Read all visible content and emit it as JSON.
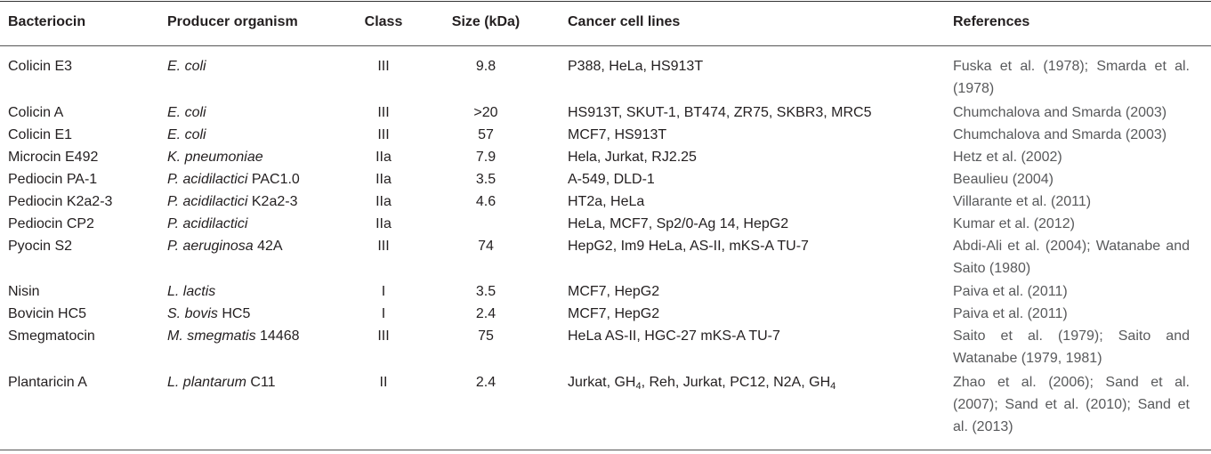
{
  "headers": [
    "Bacteriocin",
    "Producer organism",
    "Class",
    "Size (kDa)",
    "Cancer cell lines",
    "References"
  ],
  "rows": [
    {
      "bacteriocin": "Colicin E3",
      "producer_i": "E. coli",
      "producer_rest": "",
      "class": "III",
      "size": "9.8",
      "cell_lines": "P388, HeLa, HS913T",
      "references": "Fuska et al. (1978); Smarda et al. (1978)"
    },
    {
      "bacteriocin": "Colicin A",
      "producer_i": "E. coli",
      "producer_rest": "",
      "class": "III",
      "size": ">20",
      "cell_lines": "HS913T, SKUT-1, BT474, ZR75, SKBR3, MRC5",
      "references": "Chumchalova and Smarda (2003)"
    },
    {
      "bacteriocin": "Colicin E1",
      "producer_i": "E. coli",
      "producer_rest": "",
      "class": "III",
      "size": "57",
      "cell_lines": "MCF7, HS913T",
      "references": "Chumchalova and Smarda (2003)"
    },
    {
      "bacteriocin": "Microcin E492",
      "producer_i": "K. pneumoniae",
      "producer_rest": "",
      "class": "IIa",
      "size": "7.9",
      "cell_lines": "Hela, Jurkat, RJ2.25",
      "references": "Hetz et al. (2002)"
    },
    {
      "bacteriocin": "Pediocin PA-1",
      "producer_i": "P. acidilactici",
      "producer_rest": " PAC1.0",
      "class": "IIa",
      "size": "3.5",
      "cell_lines": "A-549, DLD-1",
      "references": "Beaulieu (2004)"
    },
    {
      "bacteriocin": "Pediocin K2a2-3",
      "producer_i": "P. acidilactici",
      "producer_rest": " K2a2-3",
      "class": "IIa",
      "size": "4.6",
      "cell_lines": "HT2a, HeLa",
      "references": "Villarante et al. (2011)"
    },
    {
      "bacteriocin": "Pediocin CP2",
      "producer_i": "P. acidilactici",
      "producer_rest": "",
      "class": "IIa",
      "size": "",
      "cell_lines": "HeLa, MCF7, Sp2/0-Ag 14, HepG2",
      "references": "Kumar et al. (2012)"
    },
    {
      "bacteriocin": "Pyocin S2",
      "producer_i": "P. aeruginosa",
      "producer_rest": " 42A",
      "class": "III",
      "size": "74",
      "cell_lines": "HepG2, Im9 HeLa, AS-II, mKS-A TU-7",
      "references": "Abdi-Ali et al. (2004); Watanabe and Saito (1980)"
    },
    {
      "bacteriocin": "Nisin",
      "producer_i": "L. lactis",
      "producer_rest": "",
      "class": "I",
      "size": "3.5",
      "cell_lines": "MCF7, HepG2",
      "references": "Paiva et al. (2011)"
    },
    {
      "bacteriocin": "Bovicin HC5",
      "producer_i": "S. bovis",
      "producer_rest": " HC5",
      "class": "I",
      "size": "2.4",
      "cell_lines": "MCF7, HepG2",
      "references": "Paiva et al. (2011)"
    },
    {
      "bacteriocin": "Smegmatocin",
      "producer_i": "M. smegmatis",
      "producer_rest": " 14468",
      "class": "III",
      "size": "75",
      "cell_lines": "HeLa AS-II, HGC-27 mKS-A TU-7",
      "references": "Saito et al. (1979); Saito and Watanabe (1979, 1981)"
    },
    {
      "bacteriocin": "Plantaricin A",
      "producer_i": "L. plantarum",
      "producer_rest": " C11",
      "class": "II",
      "size": "2.4",
      "cell_lines_a": "Jurkat, GH",
      "cell_lines_sub1": "4",
      "cell_lines_b": ", Reh, Jurkat, PC12, N2A, GH",
      "cell_lines_sub2": "4",
      "references": "Zhao et al. (2006); Sand et al. (2007); Sand et al. (2010); Sand et al. (2013)"
    }
  ]
}
